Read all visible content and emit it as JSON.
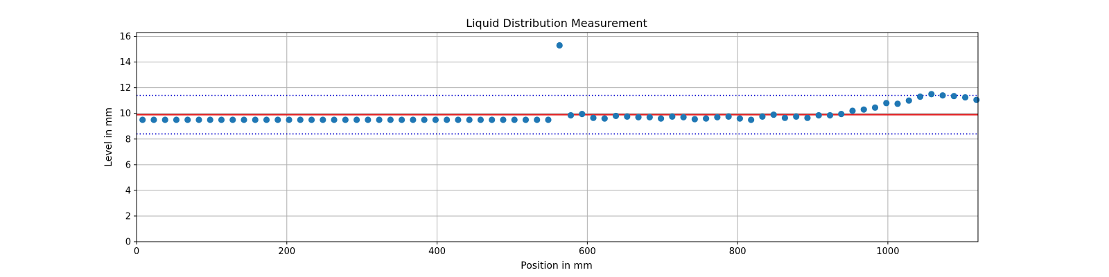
{
  "chart_data": {
    "type": "scatter",
    "title": "Liquid Distribution Measurement",
    "xlabel": "Position in mm",
    "ylabel": "Level in mm",
    "xlim": [
      0,
      1120
    ],
    "ylim": [
      0,
      16.3
    ],
    "xticks": [
      0,
      200,
      400,
      600,
      800,
      1000
    ],
    "yticks": [
      0,
      2,
      4,
      6,
      8,
      10,
      12,
      14,
      16
    ],
    "grid": true,
    "point_color": "#1f77b4",
    "reference_lines": [
      {
        "kind": "mean",
        "y": 9.9,
        "color": "#e41a1c",
        "style": "solid"
      },
      {
        "kind": "upper-limit",
        "y": 11.4,
        "color": "#0000cc",
        "style": "dotted"
      },
      {
        "kind": "lower-limit",
        "y": 8.4,
        "color": "#0000cc",
        "style": "dotted"
      }
    ],
    "x": [
      8,
      23,
      38,
      53,
      68,
      83,
      98,
      113,
      128,
      143,
      158,
      173,
      188,
      203,
      218,
      233,
      248,
      263,
      278,
      293,
      308,
      323,
      338,
      353,
      368,
      383,
      398,
      413,
      428,
      443,
      458,
      473,
      488,
      503,
      518,
      533,
      548,
      563,
      578,
      593,
      608,
      623,
      638,
      653,
      668,
      683,
      698,
      713,
      728,
      743,
      758,
      773,
      788,
      803,
      818,
      833,
      848,
      863,
      878,
      893,
      908,
      923,
      938,
      953,
      968,
      983,
      998,
      1013,
      1028,
      1043,
      1058,
      1073,
      1088,
      1103,
      1118
    ],
    "y": [
      9.5,
      9.5,
      9.5,
      9.5,
      9.5,
      9.5,
      9.5,
      9.5,
      9.5,
      9.5,
      9.5,
      9.5,
      9.5,
      9.5,
      9.5,
      9.5,
      9.5,
      9.5,
      9.5,
      9.5,
      9.5,
      9.5,
      9.5,
      9.5,
      9.5,
      9.5,
      9.5,
      9.5,
      9.5,
      9.5,
      9.5,
      9.5,
      9.5,
      9.5,
      9.5,
      9.5,
      9.5,
      15.3,
      9.85,
      9.95,
      9.65,
      9.6,
      9.8,
      9.75,
      9.7,
      9.7,
      9.6,
      9.75,
      9.7,
      9.55,
      9.6,
      9.7,
      9.75,
      9.6,
      9.5,
      9.75,
      9.9,
      9.65,
      9.75,
      9.65,
      9.85,
      9.85,
      9.95,
      10.2,
      10.3,
      10.45,
      10.8,
      10.75,
      11.0,
      11.3,
      11.5,
      11.4,
      11.35,
      11.25,
      11.05
    ]
  }
}
